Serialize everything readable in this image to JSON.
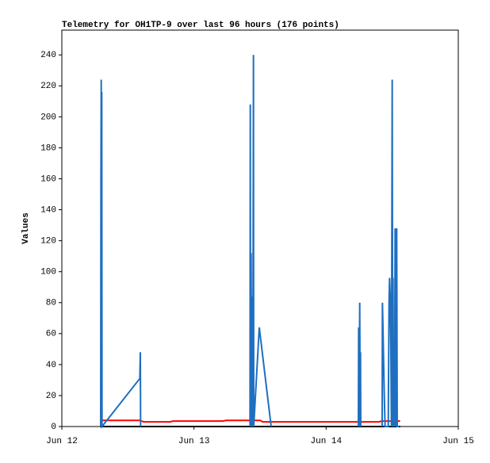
{
  "chart_data": {
    "type": "line",
    "title": "Telemetry for OH1TP-9 over last 96 hours (176 points)",
    "y_label": "Values",
    "xlim": [
      0,
      3
    ],
    "xticks": [
      {
        "value": 0,
        "label": "Jun 12"
      },
      {
        "value": 1,
        "label": "Jun 13"
      },
      {
        "value": 2,
        "label": "Jun 14"
      },
      {
        "value": 3,
        "label": "Jun 15"
      }
    ],
    "ylim": [
      0,
      256
    ],
    "yticks": [
      0,
      20,
      40,
      60,
      80,
      100,
      120,
      140,
      160,
      180,
      200,
      220,
      240
    ],
    "grid": false,
    "series": [
      {
        "color": "#000000",
        "x": [
          0.29,
          2.56
        ],
        "values": [
          0,
          0
        ]
      },
      {
        "color": "#ff0000",
        "x": [
          0.3,
          0.59,
          0.62,
          0.82,
          0.84,
          1.22,
          1.24,
          1.5,
          1.52,
          2.4,
          2.42,
          2.56
        ],
        "values": [
          4,
          4,
          3,
          3,
          3.5,
          3.5,
          4,
          4,
          3,
          3,
          3.5,
          3.5
        ]
      },
      {
        "color": "#1f6fc0",
        "x": [
          0.294,
          0.296,
          0.298,
          0.3,
          0.302,
          0.304,
          0.59,
          0.594,
          0.596,
          null,
          1.424,
          1.426,
          1.428,
          1.432,
          1.436,
          1.44,
          1.444,
          1.446,
          1.45,
          1.452,
          1.494,
          1.584,
          null,
          2.244,
          2.246,
          2.25,
          2.254,
          2.258,
          2.26,
          2.262,
          null,
          2.424,
          2.426,
          2.43,
          2.44,
          2.446,
          2.47,
          2.476,
          2.48,
          2.484,
          2.49,
          2.494,
          2.5,
          2.504,
          2.506,
          2.51,
          2.514,
          2.518,
          2.522,
          2.526,
          2.53,
          2.534,
          2.538,
          2.55
        ],
        "values": [
          0,
          160,
          224,
          0,
          216,
          0,
          31,
          48,
          0,
          null,
          0,
          208,
          0,
          112,
          0,
          84,
          0,
          28,
          240,
          0,
          64,
          0,
          null,
          0,
          64,
          0,
          80,
          0,
          48,
          0,
          null,
          0,
          80,
          64,
          20,
          0,
          0,
          80,
          96,
          86,
          48,
          0,
          224,
          0,
          96,
          0,
          32,
          0,
          128,
          112,
          0,
          128,
          0,
          0
        ]
      }
    ]
  }
}
